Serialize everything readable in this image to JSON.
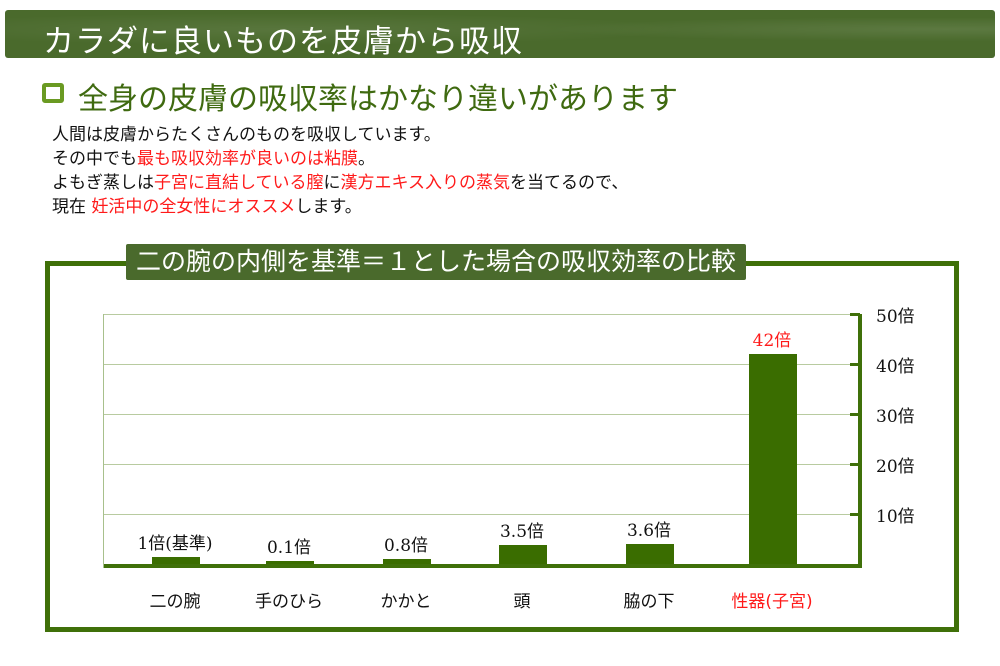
{
  "banner": {
    "title": "カラダに良いものを皮膚から吸収"
  },
  "subhead": {
    "title": "全身の皮膚の吸収率はかなり違いがあります"
  },
  "body_text": {
    "lines": [
      [
        {
          "text": "人間は皮膚からたくさんのものを吸収しています。",
          "red": false
        }
      ],
      [
        {
          "text": "その中でも",
          "red": false
        },
        {
          "text": "最も吸収効率が良いのは粘膜",
          "red": true
        },
        {
          "text": "。",
          "red": false
        }
      ],
      [
        {
          "text": "よもぎ蒸しは",
          "red": false
        },
        {
          "text": "子宮に直結している膣",
          "red": true
        },
        {
          "text": "に",
          "red": false
        },
        {
          "text": "漢方エキス入りの蒸気",
          "red": true
        },
        {
          "text": "を当てるので、",
          "red": false
        }
      ],
      [
        {
          "text": "現在 ",
          "red": false
        },
        {
          "text": "妊活中の全女性にオススメ",
          "red": true
        },
        {
          "text": "します。",
          "red": false
        }
      ]
    ]
  },
  "colors": {
    "accent_green": "#3f7009",
    "bar_green": "#3a6d00",
    "banner_green": "#4a6a2c",
    "highlight_red": "#ff1a1a"
  },
  "chart_data": {
    "type": "bar",
    "title": "二の腕の内側を基準＝１とした場合の吸収効率の比較",
    "categories": [
      "二の腕",
      "手のひら",
      "かかと",
      "頭",
      "脇の下",
      "性器(子宮)"
    ],
    "values": [
      1,
      0.1,
      0.8,
      3.5,
      3.6,
      42
    ],
    "value_labels": [
      "1倍(基準)",
      "0.1倍",
      "0.8倍",
      "3.5倍",
      "3.6倍",
      "42倍"
    ],
    "highlight_index": 5,
    "xlabel": "",
    "ylabel": "",
    "ylim": [
      0,
      50
    ],
    "yticks": [
      10,
      20,
      30,
      40,
      50
    ],
    "ytick_labels": [
      "10倍",
      "20倍",
      "30倍",
      "40倍",
      "50倍"
    ],
    "y_axis_position": "right",
    "grid": true,
    "legend": null
  }
}
